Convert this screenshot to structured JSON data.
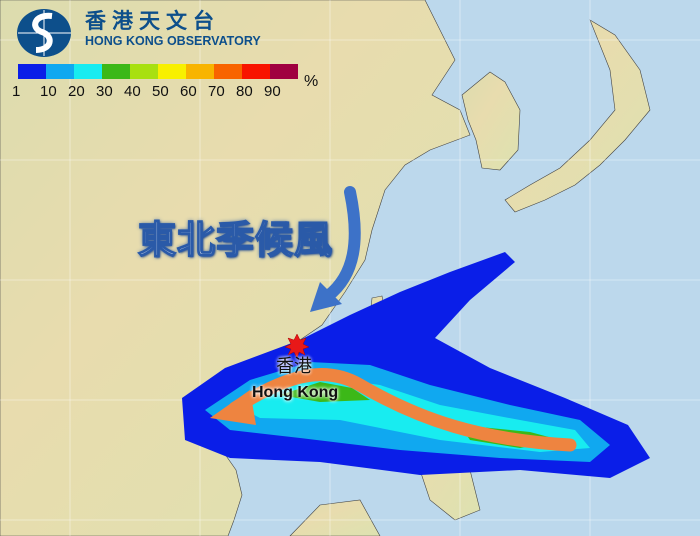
{
  "header": {
    "org_name_cn": "香港天文台",
    "org_name_en": "HONG KONG OBSERVATORY",
    "logo_icon": "hko-logo-icon"
  },
  "legend": {
    "colors": [
      "#0a1ee8",
      "#10a8f0",
      "#18ecf0",
      "#3cb818",
      "#a8e010",
      "#f8f000",
      "#f8b400",
      "#f86400",
      "#f81400",
      "#a00040"
    ],
    "ticks": [
      "1",
      "10",
      "20",
      "30",
      "40",
      "50",
      "60",
      "70",
      "80",
      "90"
    ],
    "unit": "%"
  },
  "map": {
    "monsoon_label": "東北季候風",
    "city_label_cn": "香港",
    "city_label_en": "Hong Kong",
    "colors": {
      "ocean": "#bcd8ec",
      "land": "#e6e0b4",
      "monsoon_arrow": "#3d72c8",
      "track_arrow": "#ee8440",
      "city_marker": "#e81818"
    }
  }
}
